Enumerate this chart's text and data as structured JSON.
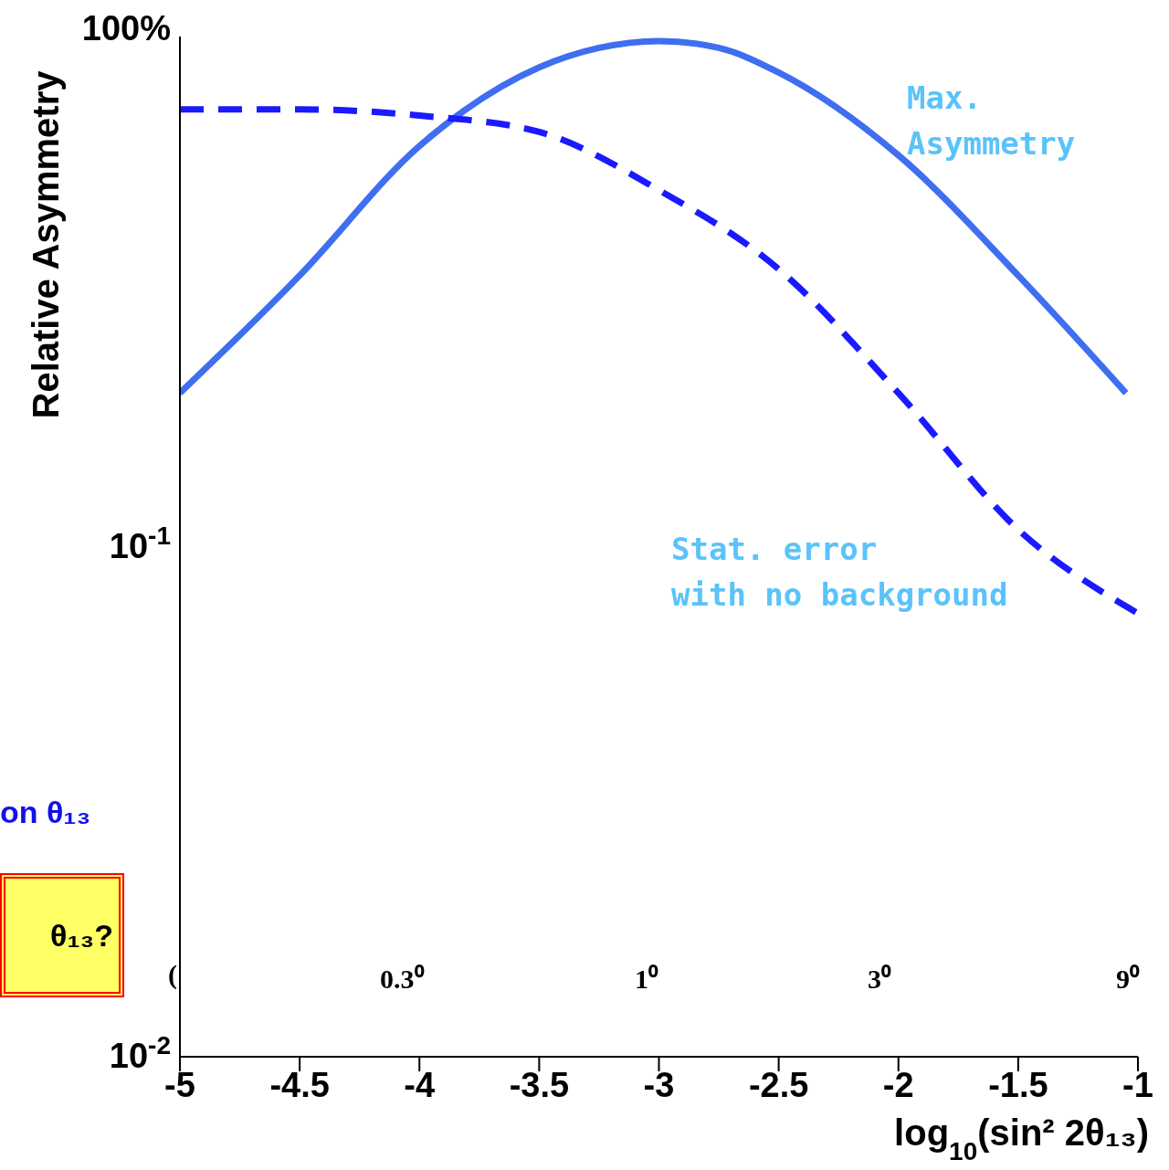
{
  "chart_data": {
    "type": "line",
    "xlabel": "log$_{10}$(sin² 2θ₁₃)",
    "ylabel": "Relative Asymmetry",
    "x": [
      -5,
      -4.5,
      -4,
      -3.5,
      -3.25,
      -3,
      -2.75,
      -2.5,
      -2,
      -1.5,
      -1.05
    ],
    "series": [
      {
        "color": "#3f6ef0",
        "line_style": "solid",
        "values": [
          0.2,
          0.34,
          0.61,
          0.87,
          0.95,
          0.98,
          0.95,
          0.85,
          0.585,
          0.34,
          0.2
        ]
      },
      {
        "color": "#1a1aff",
        "line_style": "dashed",
        "x": [
          -5,
          -4.5,
          -4,
          -3.5,
          -3,
          -2.5,
          -2,
          -1.5,
          -1
        ],
        "values": [
          0.72,
          0.72,
          0.7,
          0.65,
          0.5,
          0.35,
          0.2,
          0.108,
          0.074
        ]
      }
    ],
    "xlim": [
      -5,
      -1
    ],
    "xticks": [
      -5,
      -4.5,
      -4,
      -3.5,
      -3,
      -2.5,
      -2,
      -1.5,
      -1
    ],
    "ylim": [
      0.01,
      1
    ],
    "yticks": [
      {
        "value": 0.01,
        "label": "10$^{-2}$"
      },
      {
        "value": 0.1,
        "label": "10$^{-1}$"
      },
      {
        "value": 1,
        "label": "100%"
      }
    ],
    "log": "y",
    "grid": false,
    "legend": false,
    "annotations": [
      "Max. Asymmetry",
      "Stat. error with no background",
      "(",
      "0.3⁰",
      "1⁰",
      "3⁰",
      "9⁰",
      "on θ₁₃",
      "θ₁₃?"
    ]
  }
}
